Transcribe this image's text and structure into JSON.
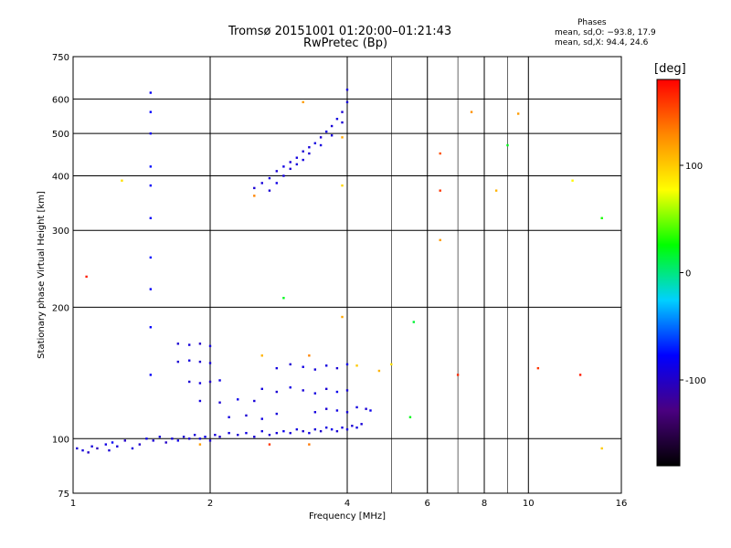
{
  "chart_data": {
    "type": "scatter",
    "title": "Tromsø 20151001 01:20:00–01:21:43",
    "subtitle": "RwPretec (Bp)",
    "xlabel": "Frequency [MHz]",
    "ylabel": "Stationary phase Virtual Height [km]",
    "x_scale": "log",
    "y_scale": "log",
    "xlim": [
      1,
      16
    ],
    "ylim": [
      75,
      750
    ],
    "x_ticks": [
      1,
      2,
      4,
      6,
      8,
      10,
      16
    ],
    "x_minor_grid": [
      5,
      7,
      9
    ],
    "y_ticks": [
      75,
      100,
      200,
      300,
      400,
      500,
      600,
      750
    ],
    "grid": true,
    "color_scale": {
      "label": "[deg]",
      "min": -180,
      "max": 180,
      "ticks": [
        100,
        0,
        -100
      ],
      "colors": [
        "#000000",
        "#4a0080",
        "#0000ff",
        "#00d0ff",
        "#00ff00",
        "#ffff00",
        "#ff8800",
        "#ff0000"
      ]
    },
    "stats": {
      "label": "Phases",
      "o_mode": "mean, sd,O: −93.8, 17.9",
      "x_mode": "mean, sd,X:  94.4, 24.6"
    },
    "series": [
      {
        "values": [
          [
            1.02,
            95,
            -95
          ],
          [
            1.05,
            94,
            -90
          ],
          [
            1.08,
            93,
            -100
          ],
          [
            1.1,
            96,
            -92
          ],
          [
            1.13,
            95,
            -105
          ],
          [
            1.18,
            97,
            -88
          ],
          [
            1.2,
            94,
            -95
          ],
          [
            1.22,
            98,
            -80
          ],
          [
            1.25,
            96,
            -93
          ],
          [
            1.3,
            99,
            -100
          ],
          [
            1.35,
            95,
            -90
          ],
          [
            1.4,
            97,
            -98
          ],
          [
            1.45,
            100,
            -85
          ],
          [
            1.5,
            99,
            -95
          ],
          [
            1.55,
            101,
            -92
          ],
          [
            1.6,
            98,
            -100
          ],
          [
            1.65,
            100,
            -90
          ],
          [
            1.7,
            99,
            -88
          ],
          [
            1.75,
            101,
            -95
          ],
          [
            1.8,
            100,
            -97
          ],
          [
            1.85,
            102,
            -93
          ],
          [
            1.9,
            100,
            -90
          ],
          [
            1.95,
            101,
            -85
          ],
          [
            2.0,
            99,
            -95
          ],
          [
            2.05,
            102,
            -92
          ],
          [
            2.1,
            101,
            -100
          ],
          [
            2.2,
            103,
            -90
          ],
          [
            2.3,
            102,
            -95
          ],
          [
            2.4,
            103,
            -88
          ],
          [
            2.5,
            101,
            -94
          ],
          [
            2.6,
            104,
            -90
          ],
          [
            2.7,
            102,
            -97
          ],
          [
            2.8,
            103,
            -92
          ],
          [
            2.9,
            104,
            -85
          ],
          [
            3.0,
            103,
            -93
          ],
          [
            3.1,
            105,
            -90
          ],
          [
            3.2,
            104,
            -95
          ],
          [
            3.3,
            103,
            -88
          ],
          [
            3.4,
            105,
            -92
          ],
          [
            3.5,
            104,
            -97
          ],
          [
            3.6,
            106,
            -90
          ],
          [
            3.7,
            105,
            -85
          ],
          [
            3.8,
            104,
            -95
          ],
          [
            3.9,
            106,
            -92
          ],
          [
            4.0,
            105,
            -90
          ],
          [
            4.1,
            107,
            -95
          ],
          [
            4.2,
            106,
            -88
          ],
          [
            4.3,
            108,
            -93
          ],
          [
            1.48,
            380,
            -80
          ],
          [
            1.48,
            420,
            -75
          ],
          [
            1.48,
            500,
            -85
          ],
          [
            1.48,
            560,
            -78
          ],
          [
            1.48,
            620,
            -82
          ],
          [
            1.48,
            320,
            -80
          ],
          [
            1.48,
            260,
            -75
          ],
          [
            1.48,
            220,
            -80
          ],
          [
            1.48,
            180,
            -78
          ],
          [
            1.48,
            140,
            -80
          ],
          [
            1.7,
            165,
            -95
          ],
          [
            1.8,
            164,
            -92
          ],
          [
            1.9,
            165,
            -100
          ],
          [
            2.0,
            163,
            -90
          ],
          [
            1.7,
            150,
            -95
          ],
          [
            1.8,
            151,
            -90
          ],
          [
            1.9,
            150,
            -97
          ],
          [
            2.0,
            149,
            -92
          ],
          [
            1.8,
            135,
            -95
          ],
          [
            1.9,
            134,
            -90
          ],
          [
            2.0,
            135,
            -100
          ],
          [
            2.1,
            136,
            -88
          ],
          [
            1.9,
            122,
            -90
          ],
          [
            2.1,
            121,
            -95
          ],
          [
            2.3,
            123,
            -85
          ],
          [
            2.5,
            122,
            -93
          ],
          [
            2.2,
            112,
            -90
          ],
          [
            2.4,
            113,
            -95
          ],
          [
            2.6,
            111,
            -88
          ],
          [
            2.8,
            114,
            -92
          ],
          [
            2.6,
            130,
            -90
          ],
          [
            2.8,
            128,
            -95
          ],
          [
            3.0,
            131,
            -88
          ],
          [
            3.2,
            129,
            -93
          ],
          [
            3.4,
            127,
            -90
          ],
          [
            3.6,
            130,
            -95
          ],
          [
            3.8,
            128,
            -85
          ],
          [
            4.0,
            129,
            -92
          ],
          [
            2.8,
            145,
            -90
          ],
          [
            3.0,
            148,
            -95
          ],
          [
            3.2,
            146,
            -88
          ],
          [
            3.4,
            144,
            -92
          ],
          [
            3.6,
            147,
            -90
          ],
          [
            3.8,
            145,
            -95
          ],
          [
            4.0,
            148,
            -85
          ],
          [
            3.4,
            115,
            -90
          ],
          [
            3.6,
            117,
            -95
          ],
          [
            3.8,
            116,
            -88
          ],
          [
            4.0,
            115,
            -92
          ],
          [
            4.2,
            118,
            -90
          ],
          [
            4.4,
            117,
            -95
          ],
          [
            4.5,
            116,
            -85
          ],
          [
            2.5,
            375,
            -95
          ],
          [
            2.6,
            385,
            -92
          ],
          [
            2.7,
            395,
            -90
          ],
          [
            2.8,
            410,
            -95
          ],
          [
            2.9,
            420,
            -88
          ],
          [
            3.0,
            430,
            -93
          ],
          [
            3.1,
            440,
            -90
          ],
          [
            3.2,
            455,
            -95
          ],
          [
            3.3,
            465,
            -92
          ],
          [
            3.4,
            475,
            -90
          ],
          [
            3.5,
            490,
            -95
          ],
          [
            3.6,
            505,
            -88
          ],
          [
            3.7,
            520,
            -93
          ],
          [
            3.8,
            540,
            -90
          ],
          [
            3.9,
            560,
            -95
          ],
          [
            4.0,
            590,
            -92
          ],
          [
            4.0,
            630,
            -90
          ],
          [
            2.7,
            370,
            -95
          ],
          [
            2.8,
            385,
            -88
          ],
          [
            2.9,
            400,
            -90
          ],
          [
            3.0,
            415,
            -95
          ],
          [
            3.1,
            425,
            -92
          ],
          [
            3.2,
            435,
            -90
          ],
          [
            3.3,
            450,
            -95
          ],
          [
            3.5,
            470,
            -90
          ],
          [
            3.7,
            495,
            -92
          ],
          [
            3.9,
            530,
            -95
          ],
          [
            3.2,
            590,
            120
          ],
          [
            3.9,
            490,
            115
          ],
          [
            2.5,
            360,
            130
          ],
          [
            3.9,
            380,
            95
          ],
          [
            2.9,
            210,
            20
          ],
          [
            3.3,
            155,
            130
          ],
          [
            2.6,
            155,
            110
          ],
          [
            3.9,
            190,
            115
          ],
          [
            4.2,
            147,
            100
          ],
          [
            4.7,
            143,
            110
          ],
          [
            5.0,
            148,
            90
          ],
          [
            5.5,
            112,
            20
          ],
          [
            5.6,
            185,
            15
          ],
          [
            6.4,
            450,
            150
          ],
          [
            6.4,
            370,
            160
          ],
          [
            6.4,
            285,
            120
          ],
          [
            7.0,
            140,
            165
          ],
          [
            7.5,
            560,
            125
          ],
          [
            8.5,
            370,
            110
          ],
          [
            9.0,
            470,
            20
          ],
          [
            9.5,
            555,
            120
          ],
          [
            10.5,
            145,
            160
          ],
          [
            13.0,
            140,
            170
          ],
          [
            12.5,
            390,
            80
          ],
          [
            14.5,
            320,
            30
          ],
          [
            14.5,
            95,
            100
          ],
          [
            1.07,
            235,
            170
          ],
          [
            1.28,
            390,
            90
          ],
          [
            3.3,
            97,
            135
          ],
          [
            1.9,
            97,
            120
          ],
          [
            2.7,
            97,
            160
          ]
        ]
      }
    ]
  }
}
